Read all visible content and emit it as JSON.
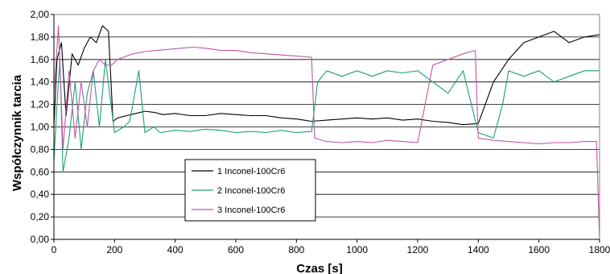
{
  "chart_data": {
    "type": "line",
    "title": "",
    "xlabel": "Czas [s]",
    "ylabel": "Współczynnik tarcia",
    "xlim": [
      0,
      1800
    ],
    "ylim": [
      0,
      2
    ],
    "x_ticks": [
      "0",
      "200",
      "400",
      "600",
      "800",
      "1000",
      "1200",
      "1400",
      "1600",
      "1800"
    ],
    "y_ticks": [
      "0,00",
      "0,20",
      "0,40",
      "0,60",
      "0,80",
      "1,00",
      "1,20",
      "1,40",
      "1,60",
      "1,80",
      "2,00"
    ],
    "grid": "horizontal",
    "legend_position": "lower-left inside",
    "series": [
      {
        "name": "1 Inconel-100Cr6",
        "color": "#000000",
        "points": [
          [
            0,
            1.0
          ],
          [
            10,
            1.6
          ],
          [
            25,
            1.75
          ],
          [
            40,
            1.1
          ],
          [
            60,
            1.65
          ],
          [
            80,
            1.55
          ],
          [
            100,
            1.7
          ],
          [
            120,
            1.8
          ],
          [
            140,
            1.75
          ],
          [
            160,
            1.9
          ],
          [
            180,
            1.85
          ],
          [
            195,
            1.05
          ],
          [
            210,
            1.08
          ],
          [
            240,
            1.1
          ],
          [
            270,
            1.12
          ],
          [
            300,
            1.14
          ],
          [
            330,
            1.13
          ],
          [
            360,
            1.11
          ],
          [
            400,
            1.12
          ],
          [
            450,
            1.1
          ],
          [
            500,
            1.1
          ],
          [
            550,
            1.12
          ],
          [
            600,
            1.11
          ],
          [
            650,
            1.1
          ],
          [
            700,
            1.1
          ],
          [
            750,
            1.08
          ],
          [
            800,
            1.07
          ],
          [
            850,
            1.05
          ],
          [
            900,
            1.06
          ],
          [
            950,
            1.07
          ],
          [
            1000,
            1.08
          ],
          [
            1050,
            1.07
          ],
          [
            1100,
            1.08
          ],
          [
            1150,
            1.06
          ],
          [
            1200,
            1.07
          ],
          [
            1250,
            1.05
          ],
          [
            1300,
            1.04
          ],
          [
            1350,
            1.02
          ],
          [
            1400,
            1.03
          ],
          [
            1450,
            1.4
          ],
          [
            1500,
            1.6
          ],
          [
            1550,
            1.75
          ],
          [
            1600,
            1.8
          ],
          [
            1650,
            1.85
          ],
          [
            1700,
            1.75
          ],
          [
            1750,
            1.8
          ],
          [
            1800,
            1.82
          ]
        ]
      },
      {
        "name": "2 Inconel-100Cr6",
        "color": "#1a9f7a",
        "points": [
          [
            0,
            0.7
          ],
          [
            10,
            1.2
          ],
          [
            20,
            1.6
          ],
          [
            30,
            0.6
          ],
          [
            50,
            0.9
          ],
          [
            70,
            1.4
          ],
          [
            90,
            0.8
          ],
          [
            110,
            1.3
          ],
          [
            130,
            1.5
          ],
          [
            150,
            1.0
          ],
          [
            170,
            1.6
          ],
          [
            200,
            0.95
          ],
          [
            230,
            1.0
          ],
          [
            250,
            1.05
          ],
          [
            280,
            1.5
          ],
          [
            300,
            0.95
          ],
          [
            330,
            1.0
          ],
          [
            350,
            0.95
          ],
          [
            400,
            0.97
          ],
          [
            450,
            0.96
          ],
          [
            500,
            0.98
          ],
          [
            550,
            0.97
          ],
          [
            600,
            0.95
          ],
          [
            650,
            0.96
          ],
          [
            700,
            0.95
          ],
          [
            750,
            0.97
          ],
          [
            800,
            0.95
          ],
          [
            850,
            0.96
          ],
          [
            870,
            1.4
          ],
          [
            900,
            1.5
          ],
          [
            950,
            1.45
          ],
          [
            1000,
            1.5
          ],
          [
            1050,
            1.45
          ],
          [
            1100,
            1.5
          ],
          [
            1150,
            1.48
          ],
          [
            1200,
            1.5
          ],
          [
            1250,
            1.4
          ],
          [
            1300,
            1.3
          ],
          [
            1350,
            1.5
          ],
          [
            1400,
            0.95
          ],
          [
            1450,
            0.9
          ],
          [
            1480,
            1.2
          ],
          [
            1500,
            1.5
          ],
          [
            1550,
            1.45
          ],
          [
            1600,
            1.5
          ],
          [
            1650,
            1.4
          ],
          [
            1700,
            1.45
          ],
          [
            1750,
            1.5
          ],
          [
            1800,
            1.5
          ]
        ]
      },
      {
        "name": "3 Inconel-100Cr6",
        "color": "#c056a6",
        "points": [
          [
            0,
            1.3
          ],
          [
            15,
            1.9
          ],
          [
            30,
            0.8
          ],
          [
            50,
            1.5
          ],
          [
            70,
            0.9
          ],
          [
            90,
            1.4
          ],
          [
            110,
            1.0
          ],
          [
            130,
            1.5
          ],
          [
            150,
            1.6
          ],
          [
            170,
            1.55
          ],
          [
            190,
            1.55
          ],
          [
            210,
            1.6
          ],
          [
            230,
            1.62
          ],
          [
            260,
            1.65
          ],
          [
            300,
            1.67
          ],
          [
            340,
            1.68
          ],
          [
            380,
            1.69
          ],
          [
            420,
            1.7
          ],
          [
            460,
            1.71
          ],
          [
            500,
            1.7
          ],
          [
            550,
            1.68
          ],
          [
            600,
            1.68
          ],
          [
            650,
            1.66
          ],
          [
            700,
            1.65
          ],
          [
            750,
            1.64
          ],
          [
            800,
            1.63
          ],
          [
            850,
            1.62
          ],
          [
            860,
            0.9
          ],
          [
            900,
            0.87
          ],
          [
            950,
            0.86
          ],
          [
            1000,
            0.87
          ],
          [
            1050,
            0.86
          ],
          [
            1100,
            0.88
          ],
          [
            1150,
            0.87
          ],
          [
            1200,
            0.86
          ],
          [
            1250,
            1.55
          ],
          [
            1300,
            1.6
          ],
          [
            1350,
            1.65
          ],
          [
            1390,
            1.68
          ],
          [
            1400,
            0.9
          ],
          [
            1450,
            0.88
          ],
          [
            1500,
            0.87
          ],
          [
            1550,
            0.86
          ],
          [
            1600,
            0.85
          ],
          [
            1650,
            0.86
          ],
          [
            1700,
            0.86
          ],
          [
            1750,
            0.87
          ],
          [
            1790,
            0.87
          ],
          [
            1800,
            0.0
          ]
        ]
      }
    ]
  }
}
